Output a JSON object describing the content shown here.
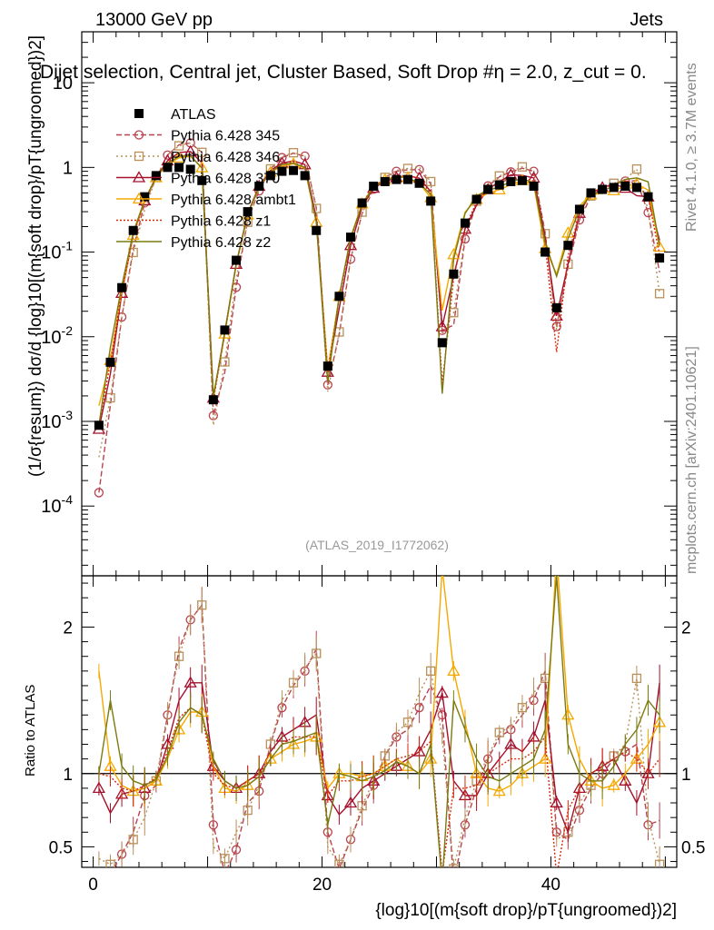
{
  "header": {
    "left": "13000 GeV pp",
    "right": "Jets",
    "plot_title": "Dijet selection, Central jet, Cluster Based, Soft Drop #η = 2.0, z_cut = 0.",
    "watermark": "(ATLAS_2019_I1772062)",
    "side_rivet": "Rivet 4.1.0, ≥ 3.7M events",
    "side_mcplots": "mcplots.cern.ch [arXiv:2401.10621]"
  },
  "chart_data": [
    {
      "type": "line",
      "panel": "main",
      "ylabel": "(1/σ{resum}) dσ/d {log}10[(m{soft drop}/pT{ungroomed})2]",
      "yscale": "log",
      "ylim": [
        1.5e-05,
        40
      ],
      "xlim": [
        -1,
        51
      ],
      "yticks": [
        "10^-4",
        "10^-3",
        "10^-2",
        "10^-1",
        "1",
        "10"
      ],
      "series_atlas": "ATLAS",
      "x": [
        0.5,
        1.5,
        2.5,
        3.5,
        4.5,
        5.5,
        6.5,
        7.5,
        8.5,
        9.5,
        10.5,
        11.5,
        12.5,
        13.5,
        14.5,
        15.5,
        16.5,
        17.5,
        18.5,
        19.5,
        20.5,
        21.5,
        22.5,
        23.5,
        24.5,
        25.5,
        26.5,
        27.5,
        28.5,
        29.5,
        30.5,
        31.5,
        32.5,
        33.5,
        34.5,
        35.5,
        36.5,
        37.5,
        38.5,
        39.5,
        40.5,
        41.5,
        42.5,
        43.5,
        44.5,
        45.5,
        46.5,
        47.5,
        48.5,
        49.5
      ],
      "atlas": [
        0.0009,
        0.005,
        0.038,
        0.18,
        0.45,
        0.8,
        1.0,
        1.0,
        0.95,
        0.7,
        0.0018,
        0.012,
        0.08,
        0.3,
        0.6,
        0.8,
        0.9,
        0.92,
        0.8,
        0.18,
        0.0045,
        0.03,
        0.15,
        0.38,
        0.6,
        0.68,
        0.72,
        0.72,
        0.65,
        0.4,
        0.0085,
        0.055,
        0.22,
        0.42,
        0.55,
        0.62,
        0.68,
        0.7,
        0.6,
        0.1,
        0.022,
        0.12,
        0.32,
        0.5,
        0.55,
        0.58,
        0.6,
        0.58,
        0.45,
        0.085
      ],
      "series": [
        {
          "name": "Pythia 6.428 345",
          "color": "#b8424f",
          "ratio": [
            0.16,
            0.31,
            0.45,
            0.6,
            0.85,
            0.92,
            1.4,
            1.85,
            2.05,
            2.15,
            0.65,
            0.32,
            0.48,
            0.8,
            0.88,
            1.2,
            1.45,
            1.6,
            1.7,
            1.85,
            0.6,
            0.35,
            0.55,
            0.75,
            0.92,
            1.12,
            1.25,
            1.3,
            1.45,
            1.6,
            1.4,
            0.25,
            0.65,
            0.9,
            1.1,
            1.25,
            1.3,
            1.4,
            1.5,
            1.7,
            0.6,
            0.55,
            0.75,
            0.9,
            1.0,
            1.1,
            1.15,
            1.2,
            0.65,
            0.68
          ]
        },
        {
          "name": "Pythia 6.428 346",
          "color": "#b8905a",
          "ratio": [
            0.42,
            0.38,
            0.45,
            0.55,
            0.7,
            0.95,
            1.42,
            1.8,
            2.05,
            2.15,
            0.5,
            0.42,
            0.6,
            0.75,
            0.92,
            1.2,
            1.5,
            1.62,
            1.72,
            1.82,
            0.5,
            0.38,
            0.55,
            0.78,
            0.95,
            1.12,
            1.28,
            1.35,
            1.55,
            1.7,
            1.25,
            0.35,
            0.7,
            0.95,
            1.12,
            1.28,
            1.32,
            1.45,
            1.55,
            1.65,
            0.55,
            0.6,
            0.8,
            0.92,
            1.05,
            1.12,
            1.2,
            1.65,
            0.7,
            0.38
          ]
        },
        {
          "name": "Pythia 6.428 370",
          "color": "#a5102c",
          "ratio": [
            0.9,
            0.73,
            0.86,
            0.88,
            0.9,
            0.95,
            1.2,
            1.5,
            1.62,
            1.62,
            1.05,
            0.95,
            0.9,
            0.95,
            1.0,
            1.15,
            1.25,
            1.3,
            1.35,
            1.4,
            0.85,
            0.72,
            0.8,
            0.9,
            0.95,
            1.0,
            1.05,
            1.1,
            1.15,
            1.3,
            1.55,
            0.95,
            0.85,
            0.85,
            1.0,
            1.1,
            1.2,
            1.15,
            1.25,
            1.5,
            0.8,
            0.6,
            0.9,
            1.0,
            1.05,
            1.1,
            0.95,
            0.8,
            1.0,
            1.62
          ]
        },
        {
          "name": "Pythia 6.428 ambt1",
          "color": "#f5a800",
          "ratio": [
            1.7,
            1.05,
            0.92,
            0.88,
            0.9,
            0.95,
            1.1,
            1.3,
            1.42,
            1.42,
            1.05,
            0.9,
            0.88,
            0.92,
            0.98,
            1.1,
            1.15,
            1.2,
            1.22,
            1.25,
            0.9,
            1.0,
            1.0,
            0.98,
            1.0,
            1.05,
            1.1,
            1.05,
            1.0,
            1.1,
            2.4,
            1.7,
            1.35,
            1.0,
            0.9,
            0.88,
            0.92,
            1.0,
            1.05,
            1.1,
            2.5,
            1.4,
            1.1,
            0.95,
            0.9,
            0.92,
            1.0,
            1.1,
            1.2,
            1.35
          ]
        },
        {
          "name": "Pythia 6.428 z1",
          "color": "#d42a0f",
          "ratio": [
            1.0,
            0.98,
            0.9,
            0.88,
            0.92,
            0.97,
            1.15,
            1.38,
            1.45,
            1.4,
            1.0,
            0.92,
            0.9,
            0.95,
            1.0,
            1.1,
            1.2,
            1.25,
            1.25,
            1.25,
            0.85,
            0.95,
            0.95,
            0.98,
            1.0,
            1.05,
            1.1,
            1.12,
            1.15,
            1.22,
            0.32,
            0.9,
            0.9,
            0.92,
            1.0,
            1.05,
            1.1,
            1.1,
            1.15,
            1.25,
            0.3,
            0.75,
            0.9,
            1.0,
            1.05,
            1.1,
            1.15,
            1.1,
            1.0,
            1.1
          ]
        },
        {
          "name": "Pythia 6.428 z2",
          "color": "#7a7a10",
          "ratio": [
            1.0,
            1.5,
            1.05,
            0.95,
            0.92,
            0.96,
            1.12,
            1.35,
            1.45,
            1.4,
            1.1,
            0.95,
            0.9,
            0.92,
            0.98,
            1.1,
            1.2,
            1.22,
            1.25,
            1.28,
            0.65,
            1.0,
            0.98,
            0.95,
            0.98,
            1.02,
            1.08,
            1.05,
            1.0,
            1.2,
            0.25,
            1.5,
            1.3,
            1.1,
            0.98,
            0.95,
            1.0,
            1.05,
            1.1,
            1.3,
            2.35,
            1.2,
            1.0,
            0.95,
            0.95,
            1.05,
            1.2,
            1.3,
            1.5,
            1.4
          ]
        }
      ]
    },
    {
      "type": "line",
      "panel": "ratio",
      "ylabel": "Ratio to ATLAS",
      "xlabel": "{log}10[(m{soft drop}/pT{ungroomed})2]",
      "ylim": [
        0.36,
        2.35
      ],
      "yticks": [
        "0.5",
        "1",
        "2"
      ],
      "xticks": [
        "0",
        "20",
        "40"
      ]
    }
  ]
}
